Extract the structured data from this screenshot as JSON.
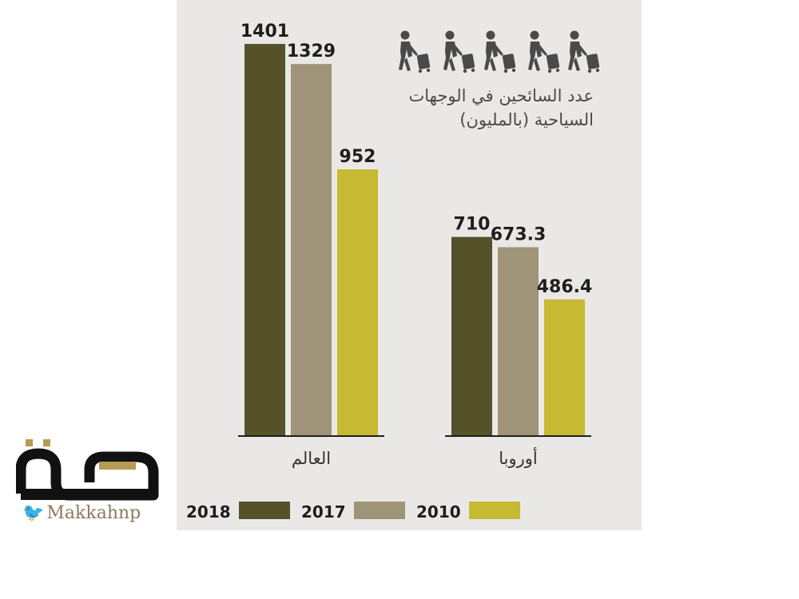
{
  "title": [
    "عدد السائحين في الوجهات",
    "السياحية (بالمليون)"
  ],
  "icon": "traveler-with-luggage-icon",
  "icon_count": 5,
  "logo": {
    "name": "مكة",
    "handle": "Makkahnp",
    "handle_icon": "twitter-bird-icon"
  },
  "chart_data": {
    "type": "bar",
    "categories": [
      "العالم",
      "أوروبا"
    ],
    "series": [
      {
        "name": "2018",
        "values": [
          1401,
          710
        ],
        "color": "#555229"
      },
      {
        "name": "2017",
        "values": [
          1329,
          673.3
        ],
        "color": "#a09478"
      },
      {
        "name": "2010",
        "values": [
          952,
          486.4
        ],
        "color": "#c7b932"
      }
    ],
    "value_labels": [
      [
        "1401",
        "710"
      ],
      [
        "1329",
        "673.3"
      ],
      [
        "952",
        "486.4"
      ]
    ],
    "ylim": [
      0,
      1401
    ],
    "grid": false,
    "legend_position": "bottom"
  }
}
